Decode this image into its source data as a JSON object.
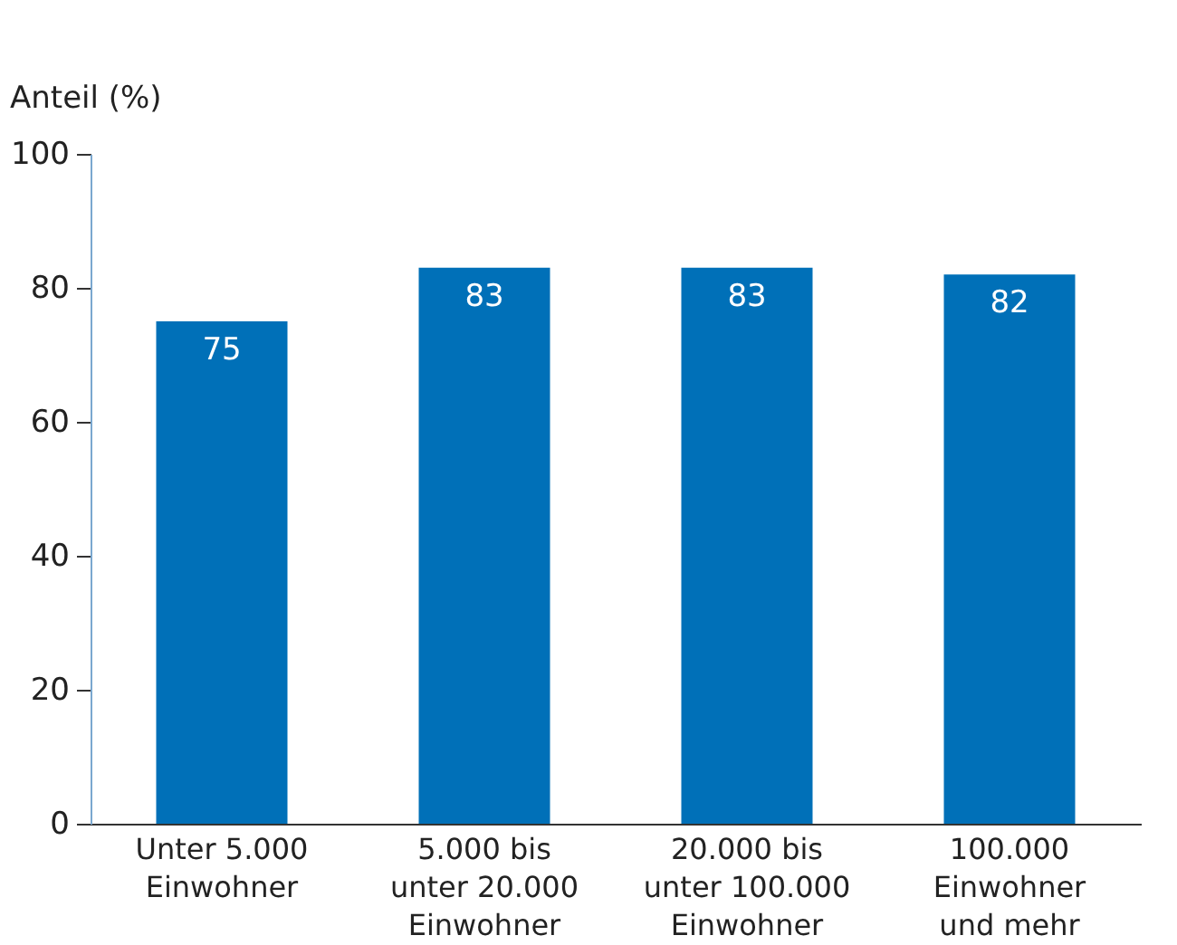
{
  "chart_data": {
    "type": "bar",
    "ylabel": "Anteil (%)",
    "categories": [
      "Unter 5.000\nEinwohner",
      "5.000 bis\nunter 20.000\nEinwohner",
      "20.000 bis\nunter 100.000\nEinwohner",
      "100.000\nEinwohner\nund mehr"
    ],
    "values": [
      75,
      83,
      83,
      82
    ],
    "color": "#0070b8",
    "ylim": [
      0,
      100
    ],
    "yticks": [
      0,
      20,
      40,
      60,
      80,
      100
    ],
    "data_labels": true,
    "grid": false
  }
}
